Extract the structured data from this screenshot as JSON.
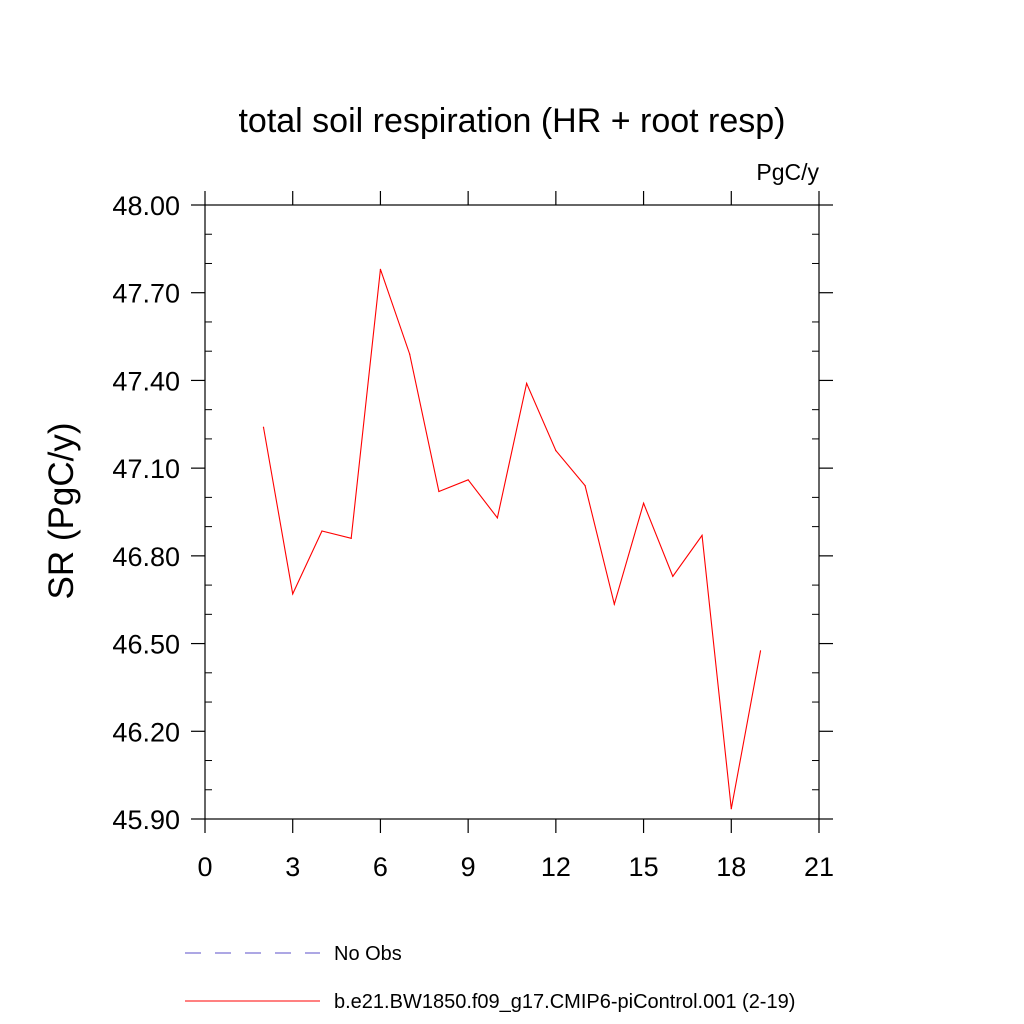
{
  "chart_data": {
    "type": "line",
    "title": "total soil respiration (HR + root resp)",
    "units_label": "PgC/y",
    "xlabel": "",
    "ylabel": "SR  (PgC/y)",
    "xlim": [
      0,
      21
    ],
    "ylim": [
      45.9,
      48.0
    ],
    "x_ticks": [
      0,
      3,
      6,
      9,
      12,
      15,
      18,
      21
    ],
    "x_tick_labels": [
      "0",
      "3",
      "6",
      "9",
      "12",
      "15",
      "18",
      "21"
    ],
    "y_ticks": [
      45.9,
      46.2,
      46.5,
      46.8,
      47.1,
      47.4,
      47.7,
      48.0
    ],
    "y_tick_labels": [
      "45.90",
      "46.20",
      "46.50",
      "46.80",
      "47.10",
      "47.40",
      "47.70",
      "48.00"
    ],
    "x_minor_step": 1,
    "y_minor_step": 0.1,
    "grid": false,
    "legend_position": "bottom-left",
    "series": [
      {
        "name": "No Obs",
        "style": "dashed",
        "color": "#5b4fc9",
        "x": [],
        "values": []
      },
      {
        "name": "b.e21.BW1850.f09_g17.CMIP6-piControl.001 (2-19)",
        "style": "solid",
        "color": "#ff0000",
        "x": [
          2,
          3,
          4,
          5,
          6,
          7,
          8,
          9,
          10,
          11,
          12,
          13,
          14,
          15,
          16,
          17,
          18,
          19
        ],
        "values": [
          47.24,
          46.67,
          46.885,
          46.86,
          47.78,
          47.49,
          47.02,
          47.06,
          46.93,
          47.39,
          47.16,
          47.04,
          46.635,
          46.98,
          46.73,
          46.87,
          45.935,
          46.475
        ]
      }
    ]
  }
}
